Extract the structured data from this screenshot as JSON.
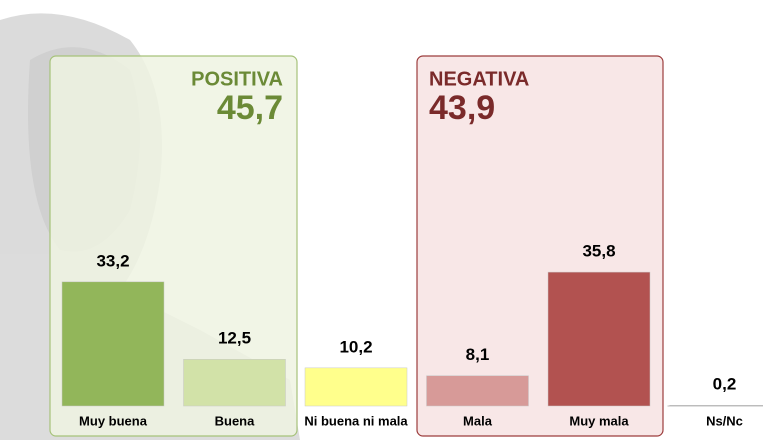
{
  "chart_data": {
    "type": "bar",
    "categories": [
      "Muy buena",
      "Buena",
      "Ni buena ni mala",
      "Mala",
      "Muy mala",
      "Ns/Nc"
    ],
    "values": [
      33.2,
      12.5,
      10.2,
      8.1,
      35.8,
      0.2
    ],
    "value_labels": [
      "33,2",
      "12,5",
      "10,2",
      "8,1",
      "35,8",
      "0,2"
    ],
    "colors": [
      "#92b65a",
      "#d2e2a8",
      "#ffff8c",
      "#d79a98",
      "#b25250",
      "#9a9a9a"
    ],
    "groups": [
      {
        "name": "POSITIVA",
        "total": 45.7,
        "total_label": "45,7",
        "color": "#6b8a36"
      },
      {
        "name": "NEGATIVA",
        "total": 43.9,
        "total_label": "43,9",
        "color": "#7a2a2a"
      }
    ]
  }
}
